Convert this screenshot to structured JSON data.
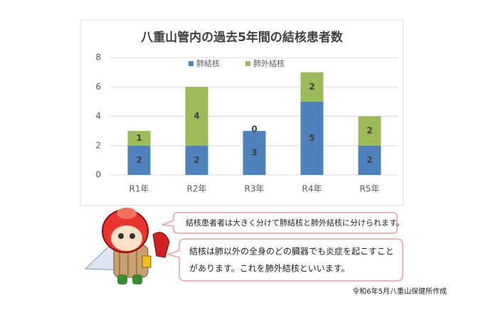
{
  "chart_data": {
    "type": "stacked_bar",
    "title": "八重山管内の過去5年間の結核患者数",
    "categories": [
      "R1年",
      "R2年",
      "R3年",
      "R4年",
      "R5年"
    ],
    "series": [
      {
        "name": "肺結核",
        "color": "#4f81bd",
        "values": [
          2,
          2,
          3,
          5,
          2
        ]
      },
      {
        "name": "肺外結核",
        "color": "#9bbb59",
        "values": [
          1,
          4,
          0,
          2,
          2
        ]
      }
    ],
    "ylim": [
      0,
      8
    ],
    "yticks": [
      0,
      2,
      4,
      6,
      8
    ],
    "grid": true,
    "legend": "top"
  },
  "notes": [
    "結核患者者は大きく分けて肺結核と肺外結核に分けられます。",
    [
      "結核は肺以外の全身のどの臓器でも炎症を起こすこと",
      "があります。これを肺外結核といいます。"
    ]
  ],
  "footer": "令和6年5月八重山保健所作成"
}
